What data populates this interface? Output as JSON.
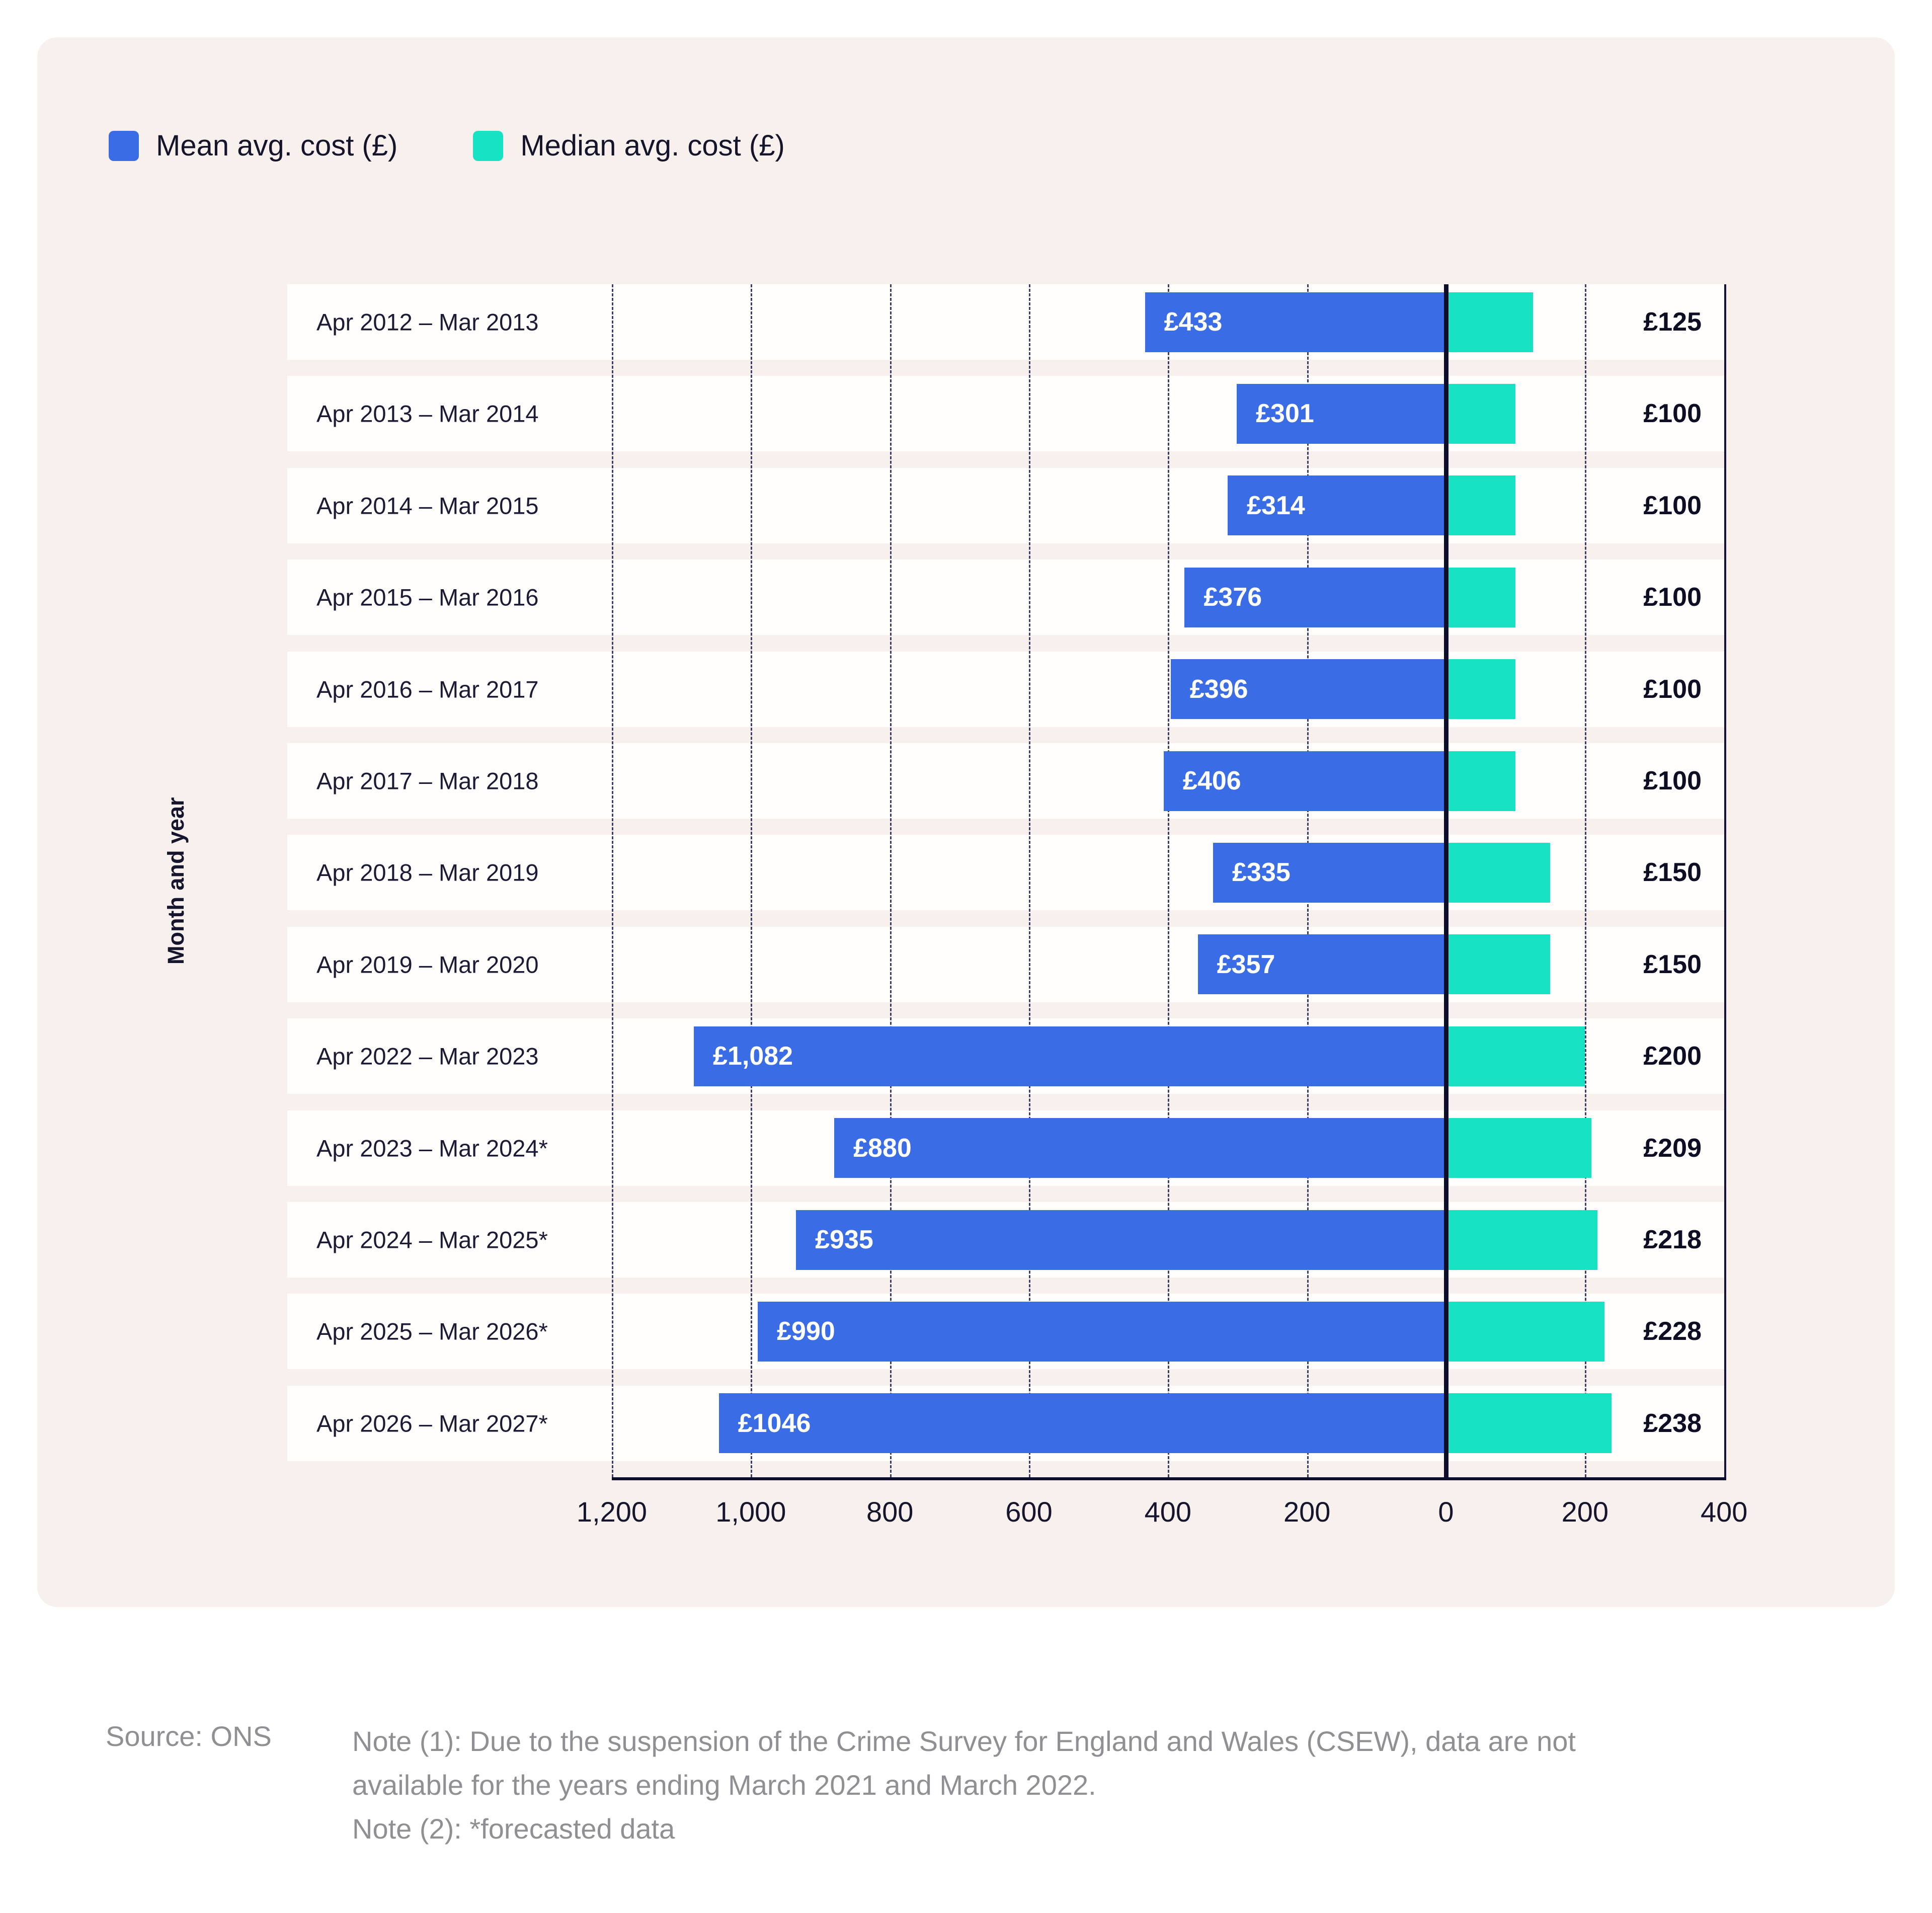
{
  "legend": {
    "items": [
      {
        "label": "Mean avg. cost (£)",
        "color": "#3a6ce6"
      },
      {
        "label": "Median avg. cost (£)",
        "color": "#17e2c3"
      }
    ]
  },
  "chart_data": {
    "type": "bar",
    "variant": "diverging-horizontal",
    "title": "",
    "ylabel": "Month and year",
    "grid": "dashed-vertical",
    "legend_position": "top-left",
    "categories": [
      "Apr 2012 – Mar 2013",
      "Apr 2013 – Mar 2014",
      "Apr 2014 – Mar 2015",
      "Apr 2015 – Mar 2016",
      "Apr 2016 – Mar 2017",
      "Apr 2017 – Mar 2018",
      "Apr 2018 – Mar 2019",
      "Apr 2019 – Mar 2020",
      "Apr 2022 – Mar 2023",
      "Apr 2023 – Mar 2024*",
      "Apr 2024 – Mar 2025*",
      "Apr 2025 – Mar 2026*",
      "Apr 2026 – Mar 2027*"
    ],
    "series": [
      {
        "name": "Mean avg. cost (£)",
        "side": "left",
        "color": "#3a6ce6",
        "values": [
          433,
          301,
          314,
          376,
          396,
          406,
          335,
          357,
          1082,
          880,
          935,
          990,
          1046
        ],
        "labels": [
          "£433",
          "£301",
          "£314",
          "£376",
          "£396",
          "£406",
          "£335",
          "£357",
          "£1,082",
          "£880",
          "£935",
          "£990",
          "£1046"
        ]
      },
      {
        "name": "Median avg. cost (£)",
        "side": "right",
        "color": "#17e2c3",
        "values": [
          125,
          100,
          100,
          100,
          100,
          100,
          150,
          150,
          200,
          209,
          218,
          228,
          238
        ],
        "labels": [
          "£125",
          "£100",
          "£100",
          "£100",
          "£100",
          "£100",
          "£150",
          "£150",
          "£200",
          "£209",
          "£218",
          "£228",
          "£238"
        ]
      }
    ],
    "x_axis": {
      "left_max": 1200,
      "right_max": 400,
      "tick_interval": 200,
      "tick_values": [
        1200,
        1000,
        800,
        600,
        400,
        200,
        0,
        -200,
        -400
      ],
      "tick_labels": [
        "1,200",
        "1,000",
        "800",
        "600",
        "400",
        "200",
        "0",
        "200",
        "400"
      ]
    }
  },
  "footer": {
    "source": "Source: ONS",
    "note1": "Note (1): Due to the suspension of the Crime Survey for England and Wales (CSEW), data are not available for the years ending March 2021 and March 2022.",
    "note2": "Note (2): *forecasted data"
  }
}
